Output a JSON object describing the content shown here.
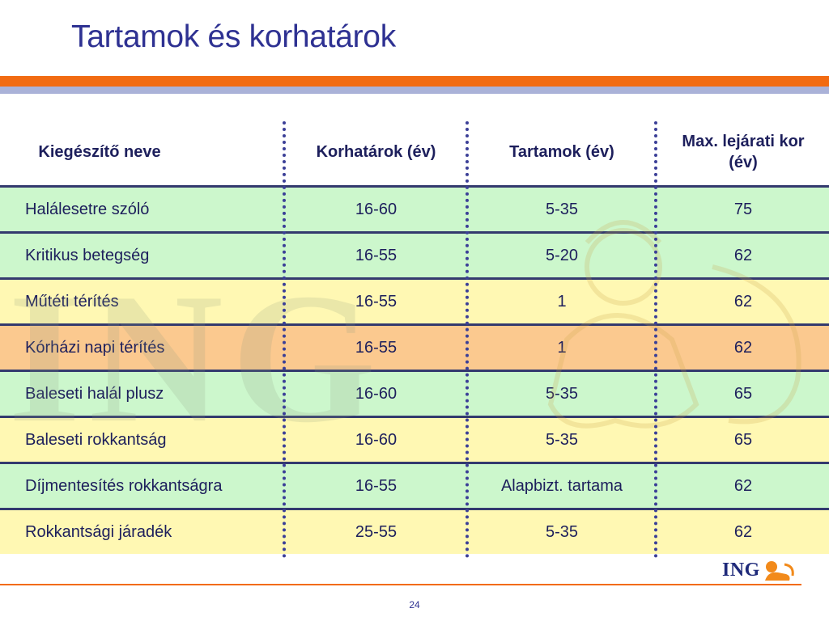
{
  "title": "Tartamok és korhatárok",
  "table": {
    "headers": [
      "Kiegészítő neve",
      "Korhatárok (év)",
      "Tartamok (év)",
      "Max. lejárati kor (év)"
    ],
    "rows": [
      {
        "name": "Halálesetre szóló",
        "age": "16-60",
        "term": "5-35",
        "max": "75",
        "color": "#ccf7cc"
      },
      {
        "name": "Kritikus betegség",
        "age": "16-55",
        "term": "5-20",
        "max": "62",
        "color": "#ccf7cc"
      },
      {
        "name": "Műtéti térítés",
        "age": "16-55",
        "term": "1",
        "max": "62",
        "color": "#fff8b3"
      },
      {
        "name": "Kórházi napi térítés",
        "age": "16-55",
        "term": "1",
        "max": "62",
        "color": "#fbc98f"
      },
      {
        "name": "Baleseti halál plusz",
        "age": "16-60",
        "term": "5-35",
        "max": "65",
        "color": "#ccf7cc"
      },
      {
        "name": "Baleseti rokkantság",
        "age": "16-60",
        "term": "5-35",
        "max": "65",
        "color": "#fff8b3"
      },
      {
        "name": "Díjmentesítés rokkantságra",
        "age": "16-55",
        "term": "Alapbizt. tartama",
        "max": "62",
        "color": "#ccf7cc"
      },
      {
        "name": "Rokkantsági járadék",
        "age": "25-55",
        "term": "5-35",
        "max": "62",
        "color": "#fff8b3"
      }
    ]
  },
  "logo": {
    "text": "ING",
    "icon": "lion-icon"
  },
  "watermark": {
    "text": "ING"
  },
  "page_number": "24",
  "colors": {
    "accent": "#f26b12",
    "brand": "#2e3192",
    "secondary_bar": "#aab2d8"
  }
}
